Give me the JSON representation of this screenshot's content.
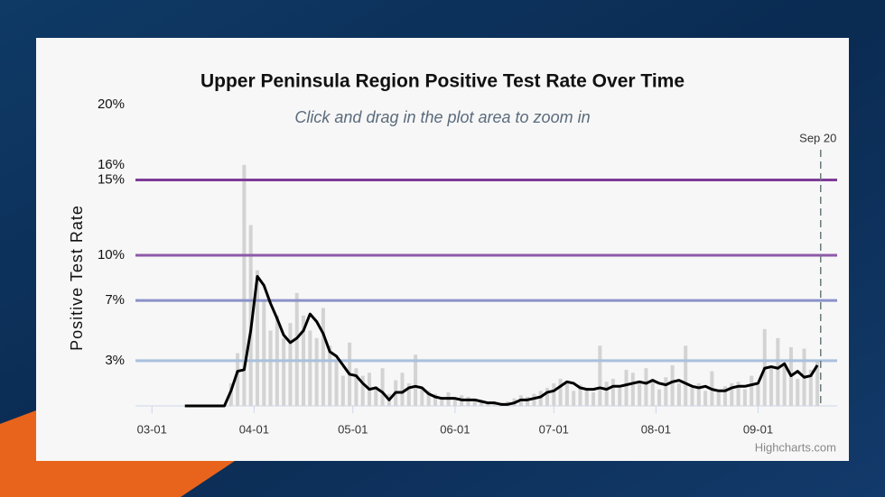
{
  "chart_data": {
    "type": "combo",
    "title": "Upper Peninsula Region Positive Test Rate Over Time",
    "subtitle": "Click and drag in the plot area to zoom in",
    "y_label": "Positive Test Rate",
    "credit": "Highcharts.com",
    "x": [
      10,
      12,
      14,
      16,
      18,
      20,
      22,
      24,
      26,
      28,
      30,
      32,
      34,
      36,
      38,
      40,
      42,
      44,
      46,
      48,
      50,
      52,
      54,
      56,
      58,
      60,
      62,
      64,
      66,
      68,
      70,
      72,
      74,
      76,
      78,
      80,
      82,
      84,
      86,
      88,
      90,
      92,
      94,
      96,
      98,
      100,
      102,
      104,
      106,
      108,
      110,
      112,
      114,
      116,
      118,
      120,
      122,
      124,
      126,
      128,
      130,
      132,
      134,
      136,
      138,
      140,
      142,
      144,
      146,
      148,
      150,
      152,
      154,
      156,
      158,
      160,
      162,
      164,
      166,
      168,
      170,
      172,
      174,
      176,
      178,
      180,
      182,
      184,
      186,
      188,
      190,
      192,
      194,
      196,
      198,
      200,
      202
    ],
    "xlim": [
      -5,
      208
    ],
    "xticks": [
      {
        "value": 0,
        "label": "03-01"
      },
      {
        "value": 31,
        "label": "04-01"
      },
      {
        "value": 61,
        "label": "05-01"
      },
      {
        "value": 92,
        "label": "06-01"
      },
      {
        "value": 122,
        "label": "07-01"
      },
      {
        "value": 153,
        "label": "08-01"
      },
      {
        "value": 184,
        "label": "09-01"
      }
    ],
    "ylim": [
      0,
      20
    ],
    "yticks": [
      {
        "value": 3,
        "label": "3%"
      },
      {
        "value": 7,
        "label": "7%"
      },
      {
        "value": 10,
        "label": "10%"
      },
      {
        "value": 15,
        "label": "15%"
      },
      {
        "value": 16,
        "label": "16%"
      },
      {
        "value": 20,
        "label": "20%"
      }
    ],
    "plot_lines": [
      {
        "value": 15,
        "color": "#7d3c98"
      },
      {
        "value": 10,
        "color": "#8e5aa8"
      },
      {
        "value": 7,
        "color": "#8a92c8"
      },
      {
        "value": 3,
        "color": "#a9c0dd"
      }
    ],
    "marker": {
      "x": 203,
      "label": "Sep 20"
    },
    "series": [
      {
        "type": "bar",
        "color": "#d3d3d3",
        "values": [
          null,
          null,
          null,
          null,
          null,
          null,
          null,
          1.5,
          3.5,
          16,
          12,
          9,
          7,
          5,
          6,
          4.5,
          5.5,
          7.5,
          6,
          5,
          4.5,
          6.5,
          4,
          3,
          2,
          4.2,
          2.5,
          2,
          2.2,
          1.3,
          2.5,
          0.8,
          1.7,
          2.2,
          1.5,
          3.4,
          1.2,
          1.0,
          0.8,
          0.6,
          0.9,
          0.5,
          0.7,
          0.6,
          0.4,
          0.3,
          0.3,
          0.2,
          0.2,
          0.3,
          0.5,
          0.7,
          0.6,
          0.8,
          1.0,
          1.2,
          1.5,
          1.8,
          1.5,
          1.0,
          1.4,
          1.2,
          0.9,
          4.0,
          1.6,
          1.8,
          1.2,
          2.4,
          2.2,
          1.5,
          2.5,
          1.8,
          1.1,
          1.9,
          2.7,
          1.5,
          4.0,
          1.2,
          1.5,
          1.0,
          2.3,
          0.9,
          1.3,
          1.5,
          1.6,
          1.1,
          2.0,
          1.4,
          5.1,
          2.6,
          4.5,
          2.8,
          3.9,
          1.8,
          3.8,
          2.4,
          3.0
        ]
      },
      {
        "type": "line",
        "color": "#000000",
        "values": [
          0,
          0,
          0,
          0,
          0,
          0,
          0,
          1.0,
          2.3,
          2.4,
          5,
          8.6,
          8.0,
          6.8,
          5.8,
          4.7,
          4.2,
          4.5,
          5.0,
          6.1,
          5.6,
          4.8,
          3.6,
          3.3,
          2.7,
          2.1,
          2.0,
          1.5,
          1.1,
          1.2,
          0.9,
          0.4,
          0.9,
          0.9,
          1.2,
          1.3,
          1.2,
          0.8,
          0.6,
          0.5,
          0.5,
          0.5,
          0.4,
          0.4,
          0.4,
          0.3,
          0.2,
          0.2,
          0.1,
          0.1,
          0.2,
          0.4,
          0.4,
          0.5,
          0.6,
          0.9,
          1.0,
          1.3,
          1.6,
          1.5,
          1.2,
          1.1,
          1.1,
          1.2,
          1.1,
          1.3,
          1.3,
          1.4,
          1.5,
          1.6,
          1.5,
          1.7,
          1.5,
          1.4,
          1.6,
          1.7,
          1.5,
          1.3,
          1.2,
          1.3,
          1.1,
          1.0,
          1.0,
          1.2,
          1.3,
          1.3,
          1.4,
          1.5,
          2.5,
          2.6,
          2.5,
          2.8,
          2.0,
          2.3,
          1.9,
          2.0,
          2.7
        ]
      }
    ]
  }
}
